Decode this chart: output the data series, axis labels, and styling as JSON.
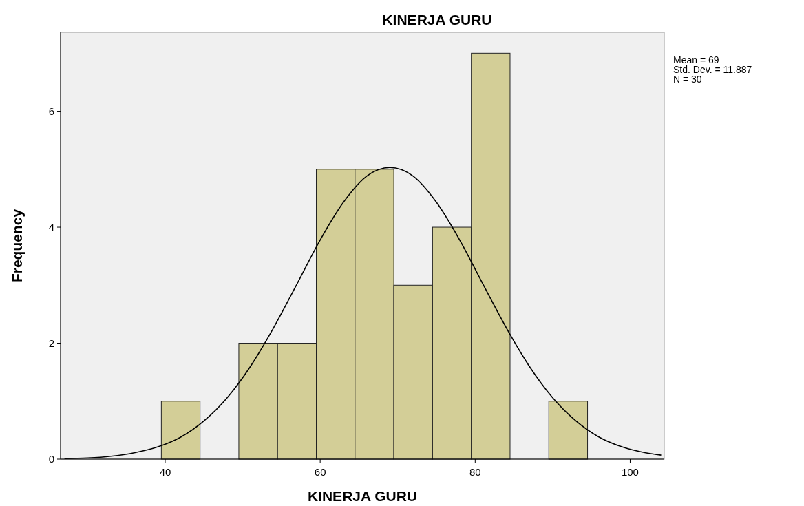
{
  "chart_data": {
    "type": "histogram",
    "title": "KINERJA GURU",
    "xlabel": "KINERJA GURU",
    "ylabel": "Frequency",
    "bins": [
      39.5,
      44.5,
      49.5,
      54.5,
      59.5,
      64.5,
      69.5,
      74.5,
      79.5,
      84.5,
      89.5,
      94.5
    ],
    "values": [
      1,
      0,
      2,
      2,
      5,
      5,
      3,
      4,
      7,
      0,
      1
    ],
    "color": "#d3ce97",
    "series": [
      {
        "type": "line",
        "color": "#000000",
        "x": [
          27,
          30,
          33,
          36,
          39,
          42,
          45,
          48,
          51,
          54,
          57,
          60,
          63,
          66,
          69,
          72,
          75,
          78,
          81,
          84,
          87,
          90,
          93,
          96,
          99,
          102,
          104
        ],
        "values": [
          0.01,
          0.02,
          0.05,
          0.11,
          0.21,
          0.38,
          0.66,
          1.06,
          1.6,
          2.27,
          3.02,
          3.78,
          4.43,
          4.88,
          5.03,
          4.88,
          4.43,
          3.78,
          3.02,
          2.27,
          1.6,
          1.06,
          0.66,
          0.38,
          0.21,
          0.11,
          0.07
        ]
      }
    ],
    "xlim": [
      26.5,
      104.4
    ],
    "ylim": [
      0,
      7.36
    ],
    "xticks": [
      40,
      60,
      80,
      100
    ],
    "yticks": [
      0,
      2,
      4,
      6
    ],
    "annotations": [
      "Mean = 69",
      "Std. Dev. = 11.887",
      "N = 30"
    ],
    "grid": false,
    "marker": "none",
    "line_style": "solid"
  }
}
